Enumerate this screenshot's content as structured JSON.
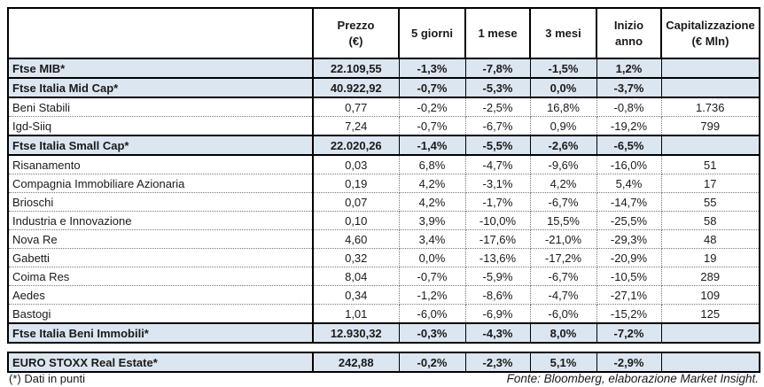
{
  "colors": {
    "row_highlight": "#dce6f1",
    "border": "#000000",
    "text": "#1a1a1a"
  },
  "table": {
    "columns": [
      {
        "label": "",
        "sublabel": ""
      },
      {
        "label": "Prezzo",
        "sublabel": "(€)"
      },
      {
        "label": "5 giorni",
        "sublabel": ""
      },
      {
        "label": "1 mese",
        "sublabel": ""
      },
      {
        "label": "3 mesi",
        "sublabel": ""
      },
      {
        "label": "Inizio anno",
        "sublabel": ""
      },
      {
        "label": "Capitalizzazione",
        "sublabel": "(€ Mln)"
      }
    ],
    "rows": [
      {
        "name": "Ftse MIB*",
        "type": "index",
        "prezzo": "22.109,55",
        "d5": "-1,3%",
        "m1": "-7,8%",
        "m3": "-1,5%",
        "ytd": "1,2%",
        "cap": ""
      },
      {
        "name": "Ftse Italia Mid Cap*",
        "type": "index",
        "prezzo": "40.922,92",
        "d5": "-0,7%",
        "m1": "-5,3%",
        "m3": "0,0%",
        "ytd": "-3,7%",
        "cap": ""
      },
      {
        "name": "Beni Stabili",
        "type": "stock",
        "prezzo": "0,77",
        "d5": "-0,2%",
        "m1": "-2,5%",
        "m3": "16,8%",
        "ytd": "-0,8%",
        "cap": "1.736"
      },
      {
        "name": "Igd-Siiq",
        "type": "stock",
        "prezzo": "7,24",
        "d5": "-0,7%",
        "m1": "-6,7%",
        "m3": "0,9%",
        "ytd": "-19,2%",
        "cap": "799"
      },
      {
        "name": "Ftse Italia Small Cap*",
        "type": "index",
        "prezzo": "22.020,26",
        "d5": "-1,4%",
        "m1": "-5,5%",
        "m3": "-2,6%",
        "ytd": "-6,5%",
        "cap": ""
      },
      {
        "name": "Risanamento",
        "type": "stock",
        "prezzo": "0,03",
        "d5": "6,8%",
        "m1": "-4,7%",
        "m3": "-9,6%",
        "ytd": "-16,0%",
        "cap": "51"
      },
      {
        "name": "Compagnia Immobiliare Azionaria",
        "type": "stock",
        "prezzo": "0,19",
        "d5": "4,2%",
        "m1": "-3,1%",
        "m3": "4,2%",
        "ytd": "5,4%",
        "cap": "17"
      },
      {
        "name": "Brioschi",
        "type": "stock",
        "prezzo": "0,07",
        "d5": "4,2%",
        "m1": "-1,7%",
        "m3": "-6,7%",
        "ytd": "-14,7%",
        "cap": "55"
      },
      {
        "name": "Industria e Innovazione",
        "type": "stock",
        "prezzo": "0,10",
        "d5": "3,9%",
        "m1": "-10,0%",
        "m3": "15,5%",
        "ytd": "-25,5%",
        "cap": "58"
      },
      {
        "name": "Nova Re",
        "type": "stock",
        "prezzo": "4,60",
        "d5": "3,4%",
        "m1": "-17,6%",
        "m3": "-21,0%",
        "ytd": "-29,3%",
        "cap": "48"
      },
      {
        "name": "Gabetti",
        "type": "stock",
        "prezzo": "0,32",
        "d5": "0,0%",
        "m1": "-13,6%",
        "m3": "-17,2%",
        "ytd": "-20,9%",
        "cap": "19"
      },
      {
        "name": "Coima Res",
        "type": "stock",
        "prezzo": "8,04",
        "d5": "-0,7%",
        "m1": "-5,9%",
        "m3": "-6,7%",
        "ytd": "-10,5%",
        "cap": "289"
      },
      {
        "name": "Aedes",
        "type": "stock",
        "prezzo": "0,34",
        "d5": "-1,2%",
        "m1": "-8,6%",
        "m3": "-4,7%",
        "ytd": "-27,1%",
        "cap": "109"
      },
      {
        "name": "Bastogi",
        "type": "stock",
        "prezzo": "1,01",
        "d5": "-6,0%",
        "m1": "-6,9%",
        "m3": "-6,0%",
        "ytd": "-15,2%",
        "cap": "125"
      },
      {
        "name": "Ftse Italia Beni Immobili*",
        "type": "index",
        "prezzo": "12.930,32",
        "d5": "-0,3%",
        "m1": "-4,3%",
        "m3": "8,0%",
        "ytd": "-7,2%",
        "cap": ""
      }
    ]
  },
  "euro_table": {
    "row": {
      "name": "EURO STOXX Real Estate*",
      "type": "index",
      "prezzo": "242,88",
      "d5": "-0,2%",
      "m1": "-2,3%",
      "m3": "5,1%",
      "ytd": "-2,9%",
      "cap": ""
    }
  },
  "footer": {
    "note": "(*) Dati in punti",
    "source": "Fonte: Bloomberg, elaborazione Market Insight."
  }
}
